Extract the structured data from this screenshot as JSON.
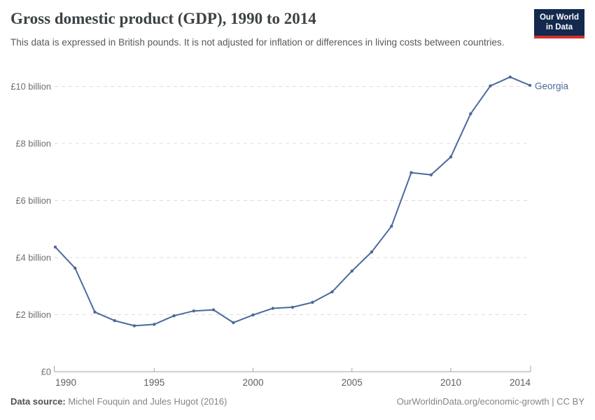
{
  "header": {
    "title": "Gross domestic product (GDP), 1990 to 2014",
    "subtitle": "This data is expressed in British pounds. It is not adjusted for inflation or differences in living costs between countries.",
    "logo": {
      "line1": "Our World",
      "line2": "in Data",
      "bg_color": "#13294d",
      "stripe_color": "#d0342c"
    }
  },
  "chart_data": {
    "type": "line",
    "title": "Gross domestic product (GDP), 1990 to 2014",
    "unit": "British pounds (billions)",
    "x": [
      1990,
      1991,
      1992,
      1993,
      1994,
      1995,
      1996,
      1997,
      1998,
      1999,
      2000,
      2001,
      2002,
      2003,
      2004,
      2005,
      2006,
      2007,
      2008,
      2009,
      2010,
      2011,
      2012,
      2013,
      2014
    ],
    "series": [
      {
        "name": "Georgia",
        "color": "#4C6A9C",
        "values": [
          4.37,
          3.63,
          2.09,
          1.79,
          1.61,
          1.66,
          1.96,
          2.13,
          2.17,
          1.72,
          1.99,
          2.22,
          2.26,
          2.43,
          2.8,
          3.53,
          4.2,
          5.1,
          6.98,
          6.9,
          7.53,
          9.04,
          10.02,
          10.33,
          10.04
        ]
      }
    ],
    "x_ticks": [
      1990,
      1995,
      2000,
      2005,
      2010,
      2014
    ],
    "y_ticks": [
      {
        "value": 0,
        "label": "£0"
      },
      {
        "value": 2,
        "label": "£2 billion"
      },
      {
        "value": 4,
        "label": "£4 billion"
      },
      {
        "value": 6,
        "label": "£6 billion"
      },
      {
        "value": 8,
        "label": "£8 billion"
      },
      {
        "value": 10,
        "label": "£10 billion"
      }
    ],
    "xlim": [
      1990,
      2014
    ],
    "ylim": [
      0,
      10.6
    ],
    "grid": "horizontal-dashed",
    "legend_position": "end-of-line"
  },
  "footer": {
    "datasource_label": "Data source:",
    "datasource_value": " Michel Fouquin and Jules Hugot (2016)",
    "credit": "OurWorldinData.org/economic-growth | CC BY"
  }
}
